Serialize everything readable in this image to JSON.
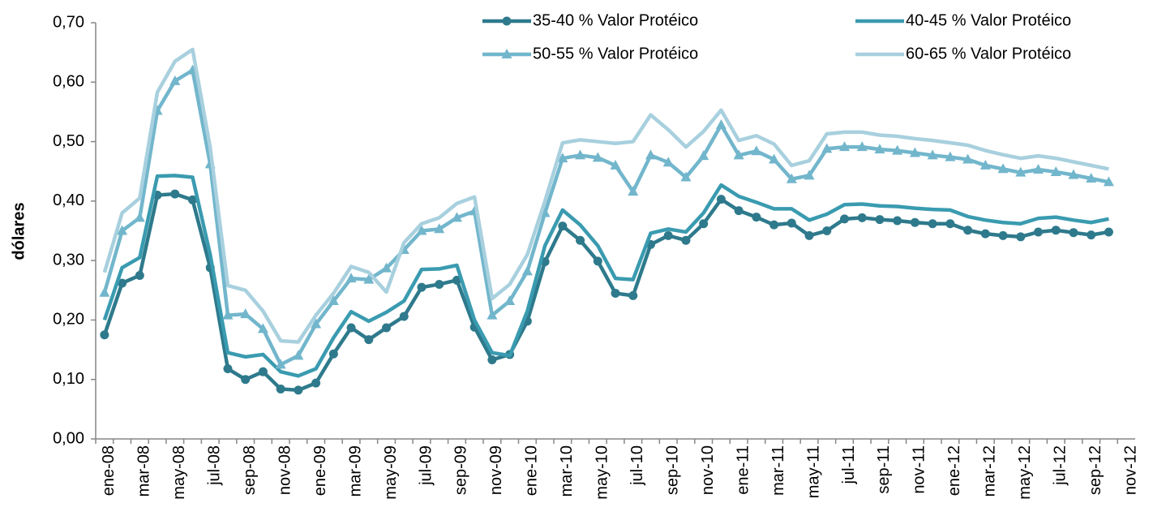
{
  "chart_data": {
    "type": "line",
    "y_label": "dólares",
    "categories": [
      "ene-08",
      null,
      "mar-08",
      null,
      "may-08",
      null,
      "jul-08",
      null,
      "sep-08",
      null,
      "nov-08",
      null,
      "ene-09",
      null,
      "mar-09",
      null,
      "may-09",
      null,
      "jul-09",
      null,
      "sep-09",
      null,
      "nov-09",
      null,
      "ene-10",
      null,
      "mar-10",
      null,
      "may-10",
      null,
      "jul-10",
      null,
      "sep-10",
      null,
      "nov-10",
      null,
      "ene-11",
      null,
      "mar-11",
      null,
      "may-11",
      null,
      "jul-11",
      null,
      "sep-11",
      null,
      "nov-11",
      null,
      "ene-12",
      null,
      "mar-12",
      null,
      "may-12",
      null,
      "jul-12",
      null,
      "sep-12",
      null,
      "nov-12"
    ],
    "series": [
      {
        "name": "35-40 % Valor Protéico",
        "color": "#2e7a8c",
        "marker": "circle",
        "values": [
          0.175,
          0.262,
          0.275,
          0.41,
          0.412,
          0.402,
          0.288,
          0.118,
          0.1,
          0.113,
          0.084,
          0.082,
          0.094,
          0.143,
          0.187,
          0.167,
          0.187,
          0.206,
          0.255,
          0.26,
          0.267,
          0.188,
          0.133,
          0.142,
          0.198,
          0.298,
          0.358,
          0.334,
          0.299,
          0.245,
          0.241,
          0.327,
          0.342,
          0.334,
          0.362,
          0.403,
          0.384,
          0.373,
          0.36,
          0.363,
          0.342,
          0.35,
          0.37,
          0.372,
          0.369,
          0.367,
          0.364,
          0.362,
          0.362,
          0.351,
          0.345,
          0.342,
          0.34,
          0.348,
          0.351,
          0.347,
          0.343,
          0.348,
          null
        ]
      },
      {
        "name": "40-45 % Valor Protéico",
        "color": "#3a9bb0",
        "marker": "none",
        "values": [
          0.2,
          0.288,
          0.305,
          0.442,
          0.443,
          0.44,
          0.31,
          0.145,
          0.138,
          0.142,
          0.113,
          0.106,
          0.118,
          0.17,
          0.214,
          0.198,
          0.213,
          0.232,
          0.285,
          0.286,
          0.292,
          0.2,
          0.145,
          0.14,
          0.215,
          0.325,
          0.385,
          0.36,
          0.325,
          0.27,
          0.268,
          0.346,
          0.353,
          0.348,
          0.38,
          0.427,
          0.408,
          0.398,
          0.387,
          0.387,
          0.368,
          0.378,
          0.394,
          0.395,
          0.392,
          0.391,
          0.388,
          0.386,
          0.385,
          0.374,
          0.368,
          0.364,
          0.362,
          0.371,
          0.373,
          0.368,
          0.364,
          0.37,
          null
        ]
      },
      {
        "name": "50-55 % Valor Protéico",
        "color": "#72b6cc",
        "marker": "triangle",
        "values": [
          0.246,
          0.35,
          0.372,
          0.552,
          0.602,
          0.62,
          0.462,
          0.208,
          0.21,
          0.185,
          0.125,
          0.14,
          0.193,
          0.232,
          0.27,
          0.268,
          0.287,
          0.318,
          0.35,
          0.353,
          0.372,
          0.383,
          0.208,
          0.232,
          0.282,
          0.38,
          0.472,
          0.477,
          0.473,
          0.46,
          0.416,
          0.477,
          0.465,
          0.44,
          0.476,
          0.528,
          0.477,
          0.484,
          0.47,
          0.437,
          0.443,
          0.488,
          0.491,
          0.491,
          0.487,
          0.485,
          0.481,
          0.477,
          0.474,
          0.47,
          0.46,
          0.454,
          0.448,
          0.453,
          0.449,
          0.444,
          0.438,
          0.432,
          null
        ]
      },
      {
        "name": "60-65 % Valor Protéico",
        "color": "#a8d0de",
        "marker": "none",
        "values": [
          0.28,
          0.38,
          0.405,
          0.583,
          0.635,
          0.655,
          0.49,
          0.258,
          0.25,
          0.215,
          0.165,
          0.163,
          0.208,
          0.245,
          0.29,
          0.28,
          0.247,
          0.33,
          0.362,
          0.372,
          0.396,
          0.407,
          0.236,
          0.26,
          0.31,
          0.4,
          0.498,
          0.503,
          0.5,
          0.497,
          0.5,
          0.545,
          0.52,
          0.491,
          0.517,
          0.553,
          0.502,
          0.51,
          0.496,
          0.46,
          0.468,
          0.513,
          0.516,
          0.516,
          0.511,
          0.509,
          0.505,
          0.502,
          0.498,
          0.494,
          0.485,
          0.478,
          0.472,
          0.476,
          0.472,
          0.466,
          0.46,
          0.454,
          null
        ]
      }
    ],
    "ylim": [
      0,
      0.7
    ],
    "yticks": [
      {
        "value": 0,
        "label": "0,00"
      },
      {
        "value": 0.1,
        "label": "0,10"
      },
      {
        "value": 0.2,
        "label": "0,20"
      },
      {
        "value": 0.3,
        "label": "0,30"
      },
      {
        "value": 0.4,
        "label": "0,40"
      },
      {
        "value": 0.5,
        "label": "0,50"
      },
      {
        "value": 0.6,
        "label": "0,60"
      },
      {
        "value": 0.7,
        "label": "0,70"
      }
    ],
    "grid": false
  }
}
